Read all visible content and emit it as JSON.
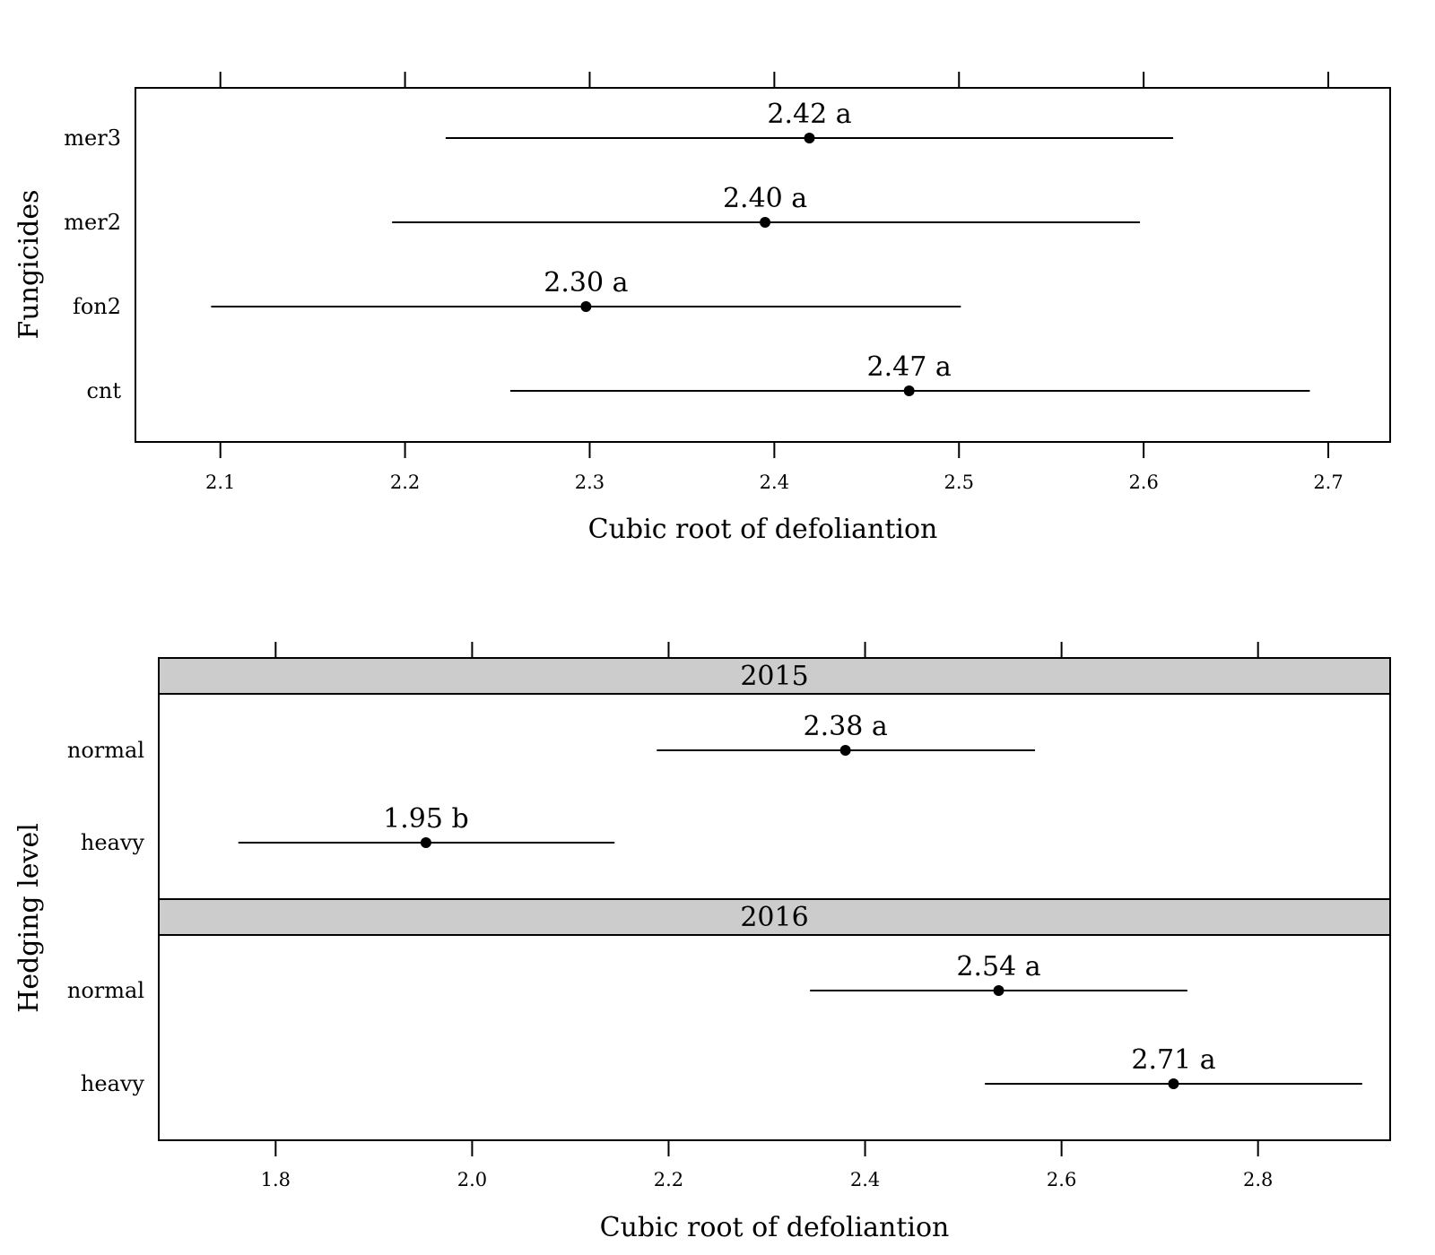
{
  "chart_data": [
    {
      "type": "dot",
      "xlabel": "Cubic root of defoliantion",
      "ylabel": "Fungicides",
      "xlim": [
        2.054,
        2.7335
      ],
      "xticks": [
        2.1,
        2.2,
        2.3,
        2.4,
        2.5,
        2.6,
        2.7
      ],
      "xtick_labels": [
        "2.1",
        "2.2",
        "2.3",
        "2.4",
        "2.5",
        "2.6",
        "2.7"
      ],
      "panels": [
        {
          "strip": "",
          "categories": [
            "mer3",
            "mer2",
            "fon2",
            "cnt"
          ],
          "estimate": [
            2.419,
            2.395,
            2.298,
            2.473
          ],
          "lower": [
            2.222,
            2.193,
            2.095,
            2.257
          ],
          "upper": [
            2.616,
            2.598,
            2.501,
            2.69
          ],
          "labels": [
            "2.42 a",
            "2.40 a",
            "2.30 a",
            "2.47 a"
          ]
        }
      ]
    },
    {
      "type": "dot",
      "xlabel": "Cubic root of defoliantion",
      "ylabel": "Hedging level",
      "xlim": [
        1.681,
        2.9345
      ],
      "xticks": [
        1.8,
        2.0,
        2.2,
        2.4,
        2.6,
        2.8
      ],
      "xtick_labels": [
        "1.8",
        "2.0",
        "2.2",
        "2.4",
        "2.6",
        "2.8"
      ],
      "panels": [
        {
          "strip": "2015",
          "categories": [
            "normal",
            "heavy"
          ],
          "estimate": [
            2.38,
            1.953
          ],
          "lower": [
            2.188,
            1.762
          ],
          "upper": [
            2.573,
            2.145
          ],
          "labels": [
            "2.38 a",
            "1.95 b"
          ]
        },
        {
          "strip": "2016",
          "categories": [
            "normal",
            "heavy"
          ],
          "estimate": [
            2.536,
            2.714
          ],
          "lower": [
            2.344,
            2.522
          ],
          "upper": [
            2.728,
            2.906
          ],
          "labels": [
            "2.54 a",
            "2.71 a"
          ]
        }
      ]
    }
  ]
}
